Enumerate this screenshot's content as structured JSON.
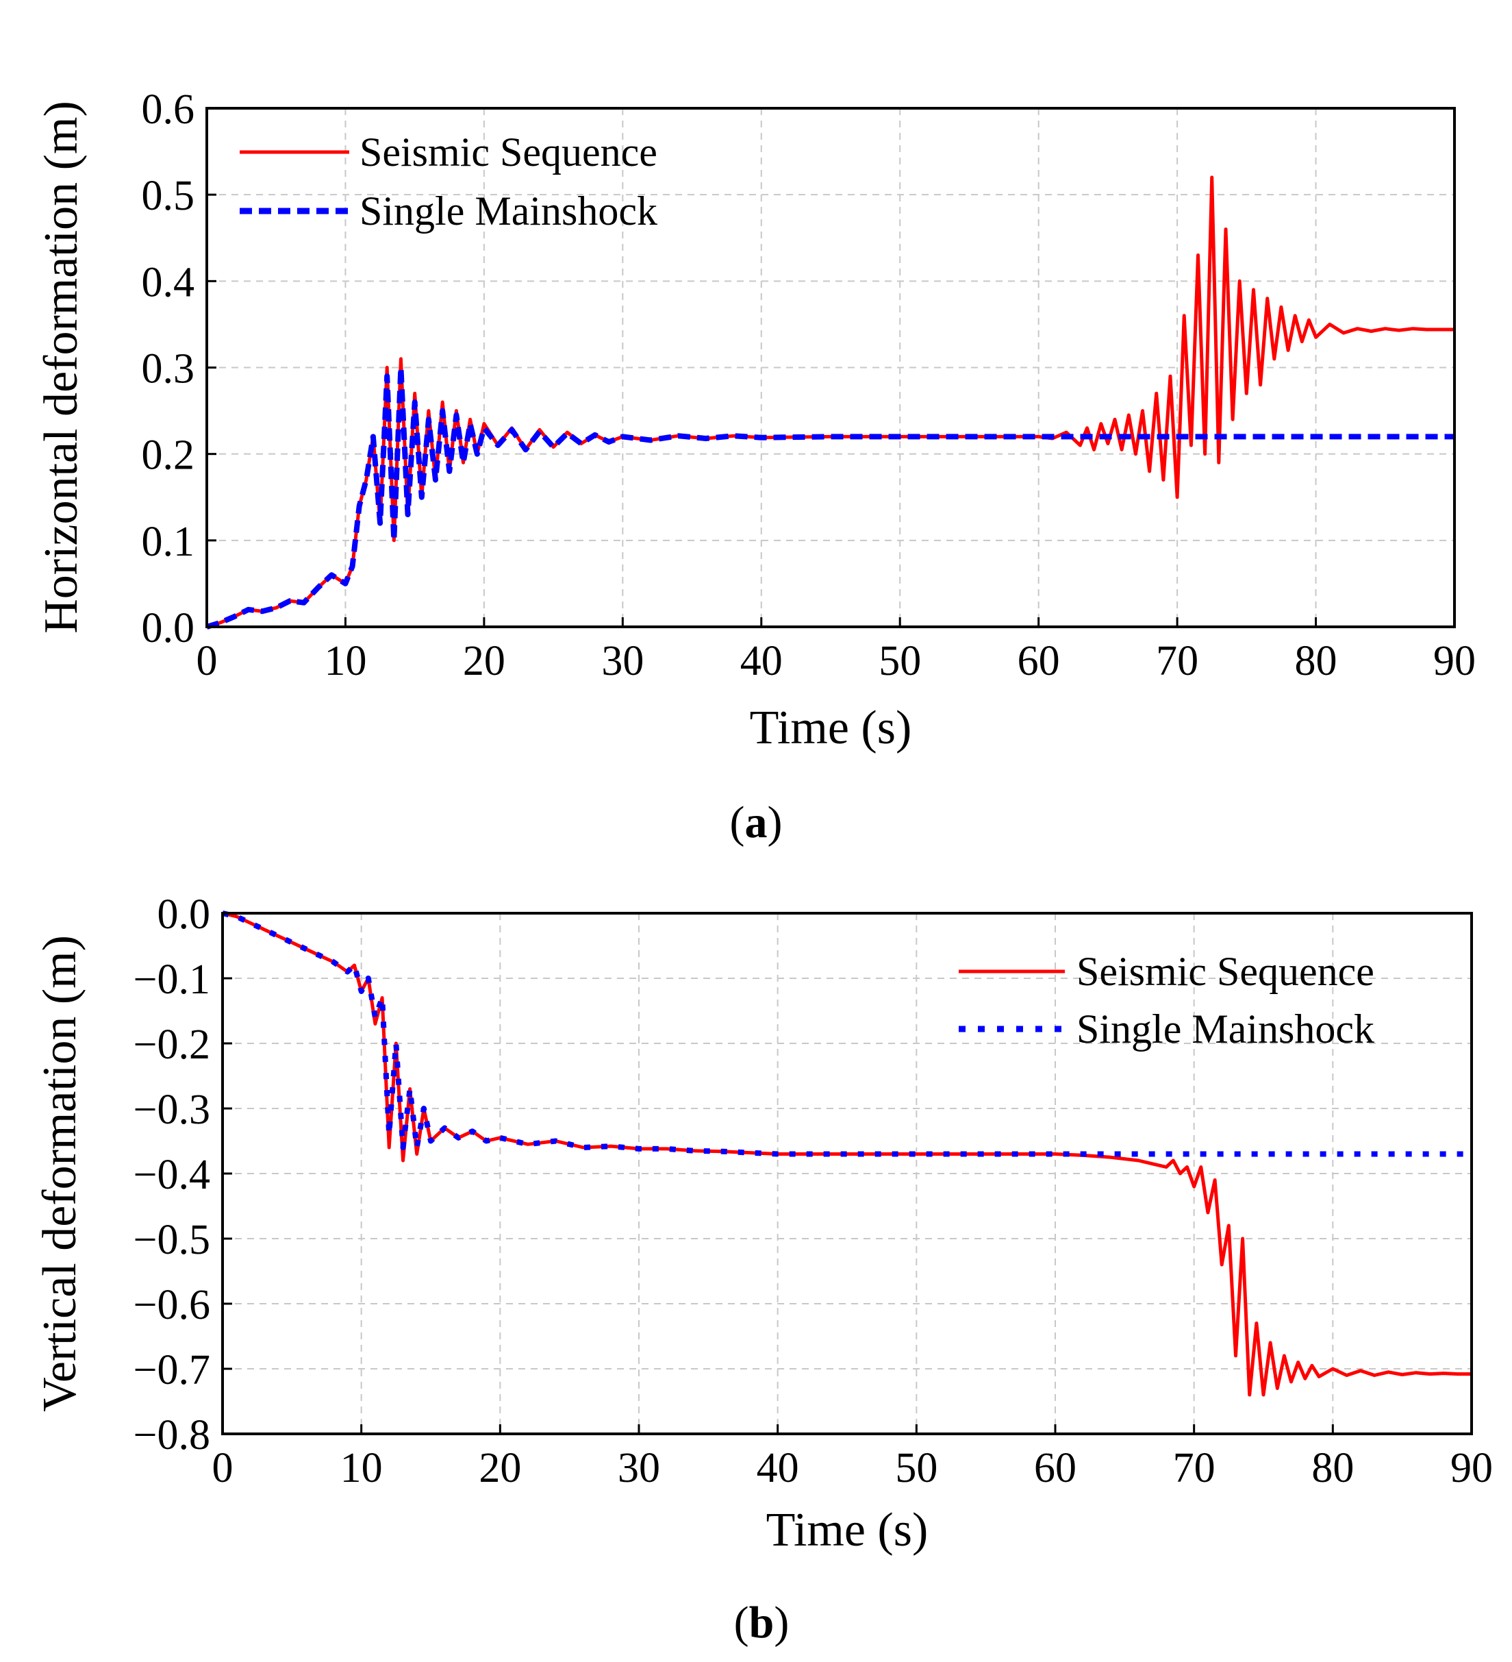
{
  "chart_data": [
    {
      "id": "a",
      "type": "line",
      "panel_label": "a",
      "xlabel": "Time (s)",
      "ylabel": "Horizontal deformation (m)",
      "xlim": [
        0,
        90
      ],
      "ylim": [
        0.0,
        0.6
      ],
      "xticks": [
        "0",
        "10",
        "20",
        "30",
        "40",
        "50",
        "60",
        "70",
        "80",
        "90"
      ],
      "yticks": [
        "0.0",
        "0.1",
        "0.2",
        "0.3",
        "0.4",
        "0.5",
        "0.6"
      ],
      "grid": true,
      "legend_position": "top-left",
      "series": [
        {
          "name": "Seismic Sequence",
          "color": "#ff0000",
          "style": "solid",
          "x": [
            0,
            1,
            2,
            3,
            4,
            5,
            6,
            7,
            8,
            9,
            10,
            10.5,
            11,
            11.5,
            12,
            12.5,
            13,
            13.5,
            14,
            14.5,
            15,
            15.5,
            16,
            16.5,
            17,
            17.5,
            18,
            18.5,
            19,
            19.5,
            20,
            21,
            22,
            23,
            24,
            25,
            26,
            27,
            28,
            29,
            30,
            32,
            34,
            36,
            38,
            40,
            45,
            50,
            55,
            60,
            61,
            62,
            63,
            63.5,
            64,
            64.5,
            65,
            65.5,
            66,
            66.5,
            67,
            67.5,
            68,
            68.5,
            69,
            69.5,
            70,
            70.5,
            71,
            71.5,
            72,
            72.5,
            73,
            73.5,
            74,
            74.5,
            75,
            75.5,
            76,
            76.5,
            77,
            77.5,
            78,
            78.5,
            79,
            79.5,
            80,
            81,
            82,
            83,
            84,
            85,
            86,
            87,
            88,
            89,
            90
          ],
          "values": [
            0.0,
            0.005,
            0.012,
            0.02,
            0.018,
            0.022,
            0.03,
            0.028,
            0.045,
            0.06,
            0.05,
            0.07,
            0.14,
            0.17,
            0.22,
            0.12,
            0.3,
            0.1,
            0.31,
            0.13,
            0.27,
            0.15,
            0.25,
            0.17,
            0.26,
            0.18,
            0.25,
            0.19,
            0.24,
            0.2,
            0.235,
            0.21,
            0.23,
            0.205,
            0.228,
            0.208,
            0.225,
            0.212,
            0.222,
            0.214,
            0.22,
            0.216,
            0.221,
            0.218,
            0.221,
            0.219,
            0.22,
            0.22,
            0.22,
            0.22,
            0.218,
            0.225,
            0.21,
            0.23,
            0.205,
            0.235,
            0.212,
            0.24,
            0.205,
            0.245,
            0.2,
            0.25,
            0.18,
            0.27,
            0.17,
            0.29,
            0.15,
            0.36,
            0.21,
            0.43,
            0.2,
            0.52,
            0.19,
            0.46,
            0.24,
            0.4,
            0.27,
            0.39,
            0.28,
            0.38,
            0.31,
            0.37,
            0.32,
            0.36,
            0.33,
            0.355,
            0.335,
            0.35,
            0.34,
            0.345,
            0.342,
            0.345,
            0.343,
            0.345,
            0.344,
            0.344,
            0.344
          ]
        },
        {
          "name": "Single Mainshock",
          "color": "#0000ff",
          "style": "dashed",
          "x": [
            0,
            1,
            2,
            3,
            4,
            5,
            6,
            7,
            8,
            9,
            10,
            10.5,
            11,
            11.5,
            12,
            12.5,
            13,
            13.5,
            14,
            14.5,
            15,
            15.5,
            16,
            16.5,
            17,
            17.5,
            18,
            18.5,
            19,
            19.5,
            20,
            21,
            22,
            23,
            24,
            25,
            26,
            27,
            28,
            29,
            30,
            32,
            34,
            36,
            38,
            40,
            45,
            50,
            55,
            60,
            65,
            70,
            75,
            80,
            85,
            90
          ],
          "values": [
            0.0,
            0.005,
            0.012,
            0.02,
            0.018,
            0.022,
            0.03,
            0.028,
            0.045,
            0.06,
            0.05,
            0.07,
            0.14,
            0.17,
            0.22,
            0.12,
            0.29,
            0.1,
            0.3,
            0.13,
            0.26,
            0.15,
            0.24,
            0.17,
            0.25,
            0.18,
            0.245,
            0.19,
            0.235,
            0.2,
            0.23,
            0.21,
            0.228,
            0.205,
            0.226,
            0.208,
            0.224,
            0.212,
            0.222,
            0.214,
            0.22,
            0.216,
            0.221,
            0.218,
            0.221,
            0.219,
            0.22,
            0.22,
            0.22,
            0.22,
            0.22,
            0.22,
            0.22,
            0.22,
            0.22,
            0.22
          ]
        }
      ]
    },
    {
      "id": "b",
      "type": "line",
      "panel_label": "b",
      "xlabel": "Time (s)",
      "ylabel": "Vertical deformation (m)",
      "xlim": [
        0,
        90
      ],
      "ylim": [
        -0.8,
        0.0
      ],
      "xticks": [
        "0",
        "10",
        "20",
        "30",
        "40",
        "50",
        "60",
        "70",
        "80",
        "90"
      ],
      "yticks": [
        "0.0",
        "−0.1",
        "−0.2",
        "−0.3",
        "−0.4",
        "−0.5",
        "−0.6",
        "−0.7",
        "−0.8"
      ],
      "grid": true,
      "legend_position": "top-right",
      "series": [
        {
          "name": "Seismic Sequence",
          "color": "#ff0000",
          "style": "solid",
          "x": [
            0,
            1,
            2,
            3,
            4,
            5,
            6,
            7,
            8,
            9,
            9.5,
            10,
            10.5,
            11,
            11.5,
            12,
            12.5,
            13,
            13.5,
            14,
            14.5,
            15,
            16,
            17,
            18,
            19,
            20,
            22,
            24,
            26,
            28,
            30,
            32,
            34,
            36,
            38,
            40,
            45,
            50,
            55,
            60,
            62,
            64,
            66,
            67,
            68,
            68.5,
            69,
            69.5,
            70,
            70.5,
            71,
            71.5,
            72,
            72.5,
            73,
            73.5,
            74,
            74.5,
            75,
            75.5,
            76,
            76.5,
            77,
            77.5,
            78,
            78.5,
            79,
            80,
            81,
            82,
            83,
            84,
            85,
            86,
            87,
            88,
            89,
            90
          ],
          "values": [
            0.0,
            -0.005,
            -0.015,
            -0.025,
            -0.035,
            -0.045,
            -0.055,
            -0.065,
            -0.075,
            -0.09,
            -0.08,
            -0.12,
            -0.1,
            -0.17,
            -0.13,
            -0.36,
            -0.2,
            -0.38,
            -0.27,
            -0.37,
            -0.3,
            -0.35,
            -0.33,
            -0.345,
            -0.335,
            -0.35,
            -0.345,
            -0.355,
            -0.35,
            -0.36,
            -0.358,
            -0.362,
            -0.362,
            -0.365,
            -0.366,
            -0.368,
            -0.37,
            -0.37,
            -0.37,
            -0.37,
            -0.37,
            -0.372,
            -0.375,
            -0.38,
            -0.385,
            -0.39,
            -0.38,
            -0.4,
            -0.39,
            -0.42,
            -0.39,
            -0.46,
            -0.41,
            -0.54,
            -0.48,
            -0.68,
            -0.5,
            -0.74,
            -0.63,
            -0.74,
            -0.66,
            -0.73,
            -0.68,
            -0.72,
            -0.69,
            -0.715,
            -0.695,
            -0.712,
            -0.7,
            -0.71,
            -0.703,
            -0.71,
            -0.705,
            -0.709,
            -0.706,
            -0.708,
            -0.707,
            -0.708,
            -0.708
          ]
        },
        {
          "name": "Single Mainshock",
          "color": "#0000ff",
          "style": "dotted",
          "x": [
            0,
            1,
            2,
            3,
            4,
            5,
            6,
            7,
            8,
            9,
            9.5,
            10,
            10.5,
            11,
            11.5,
            12,
            12.5,
            13,
            13.5,
            14,
            14.5,
            15,
            16,
            17,
            18,
            19,
            20,
            22,
            24,
            26,
            28,
            30,
            32,
            34,
            36,
            38,
            40,
            45,
            50,
            55,
            60,
            65,
            70,
            75,
            80,
            85,
            90
          ],
          "values": [
            0.0,
            -0.005,
            -0.015,
            -0.025,
            -0.035,
            -0.045,
            -0.055,
            -0.065,
            -0.075,
            -0.09,
            -0.08,
            -0.12,
            -0.1,
            -0.16,
            -0.13,
            -0.34,
            -0.2,
            -0.36,
            -0.27,
            -0.36,
            -0.3,
            -0.35,
            -0.33,
            -0.345,
            -0.335,
            -0.35,
            -0.345,
            -0.355,
            -0.35,
            -0.36,
            -0.358,
            -0.362,
            -0.362,
            -0.365,
            -0.366,
            -0.368,
            -0.37,
            -0.37,
            -0.37,
            -0.37,
            -0.37,
            -0.37,
            -0.37,
            -0.37,
            -0.37,
            -0.37,
            -0.37
          ]
        }
      ]
    }
  ]
}
